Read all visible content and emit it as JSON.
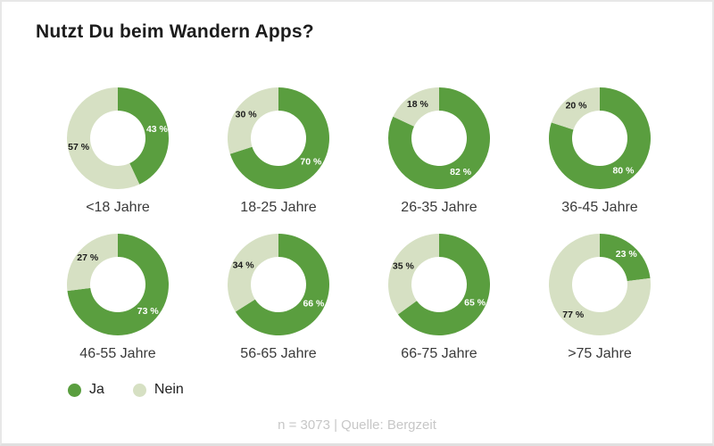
{
  "page": {
    "title": "Nutzt Du beim Wandern Apps?",
    "footer": "n = 3073 | Quelle: Bergzeit"
  },
  "chart_data": {
    "type": "pie",
    "subtype": "donut-grid",
    "title": "Nutzt Du beim Wandern Apps?",
    "unit": "%",
    "legend_position": "bottom-left",
    "colors": {
      "ja": "#5a9e3f",
      "nein": "#d6e0c3",
      "label_on_ja": "#ffffff",
      "label_on_nein": "#1a1a1a"
    },
    "legend": [
      {
        "name": "Ja"
      },
      {
        "name": "Nein"
      }
    ],
    "charts": [
      {
        "label": "<18 Jahre",
        "slices": [
          {
            "name": "Ja",
            "value": 43,
            "text": "43 %"
          },
          {
            "name": "Nein",
            "value": 57,
            "text": "57 %"
          }
        ]
      },
      {
        "label": "18-25 Jahre",
        "slices": [
          {
            "name": "Ja",
            "value": 70,
            "text": "70 %"
          },
          {
            "name": "Nein",
            "value": 30,
            "text": "30 %"
          }
        ]
      },
      {
        "label": "26-35 Jahre",
        "slices": [
          {
            "name": "Ja",
            "value": 82,
            "text": "82 %"
          },
          {
            "name": "Nein",
            "value": 18,
            "text": "18 %"
          }
        ]
      },
      {
        "label": "36-45 Jahre",
        "slices": [
          {
            "name": "Ja",
            "value": 80,
            "text": "80 %"
          },
          {
            "name": "Nein",
            "value": 20,
            "text": "20 %"
          }
        ]
      },
      {
        "label": "46-55 Jahre",
        "slices": [
          {
            "name": "Ja",
            "value": 73,
            "text": "73 %"
          },
          {
            "name": "Nein",
            "value": 27,
            "text": "27 %"
          }
        ]
      },
      {
        "label": "56-65 Jahre",
        "slices": [
          {
            "name": "Ja",
            "value": 66,
            "text": "66 %"
          },
          {
            "name": "Nein",
            "value": 34,
            "text": "34 %"
          }
        ]
      },
      {
        "label": "66-75 Jahre",
        "slices": [
          {
            "name": "Ja",
            "value": 65,
            "text": "65 %"
          },
          {
            "name": "Nein",
            "value": 35,
            "text": "35 %"
          }
        ]
      },
      {
        "label": ">75 Jahre",
        "slices": [
          {
            "name": "Ja",
            "value": 23,
            "text": "23 %"
          },
          {
            "name": "Nein",
            "value": 77,
            "text": "77 %"
          }
        ]
      }
    ],
    "footer": "n = 3073 | Quelle: Bergzeit"
  }
}
